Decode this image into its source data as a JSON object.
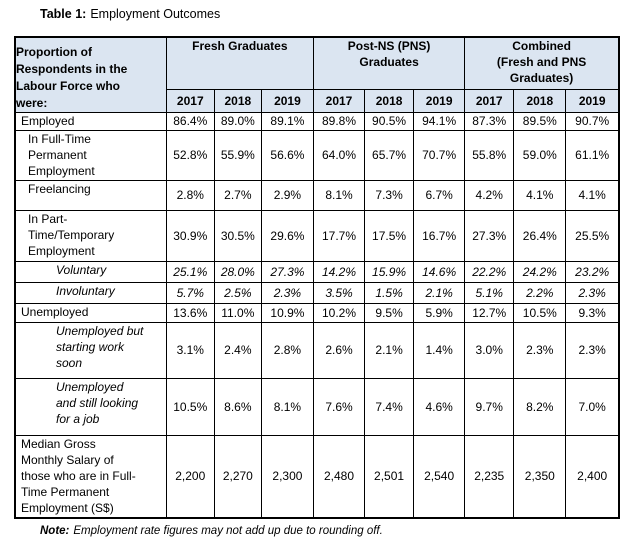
{
  "title": {
    "prefix": "Table 1:",
    "text": "Employment Outcomes"
  },
  "colors": {
    "header_bg": "#dbe5f1",
    "border": "#000000",
    "text": "#000000"
  },
  "table": {
    "corner_header": "Proportion of\nRespondents in the\nLabour Force who\nwere:",
    "groups": [
      {
        "label": "Fresh Graduates",
        "years": [
          "2017",
          "2018",
          "2019"
        ]
      },
      {
        "label": "Post-NS (PNS)\nGraduates",
        "years": [
          "2017",
          "2018",
          "2019"
        ]
      },
      {
        "label": "Combined\n(Fresh and PNS\nGraduates)",
        "years": [
          "2017",
          "2018",
          "2019"
        ]
      }
    ],
    "rows": [
      {
        "label": "Employed",
        "indent": 1,
        "italic": false,
        "italic_values": false,
        "values": [
          "86.4%",
          "89.0%",
          "89.1%",
          "89.8%",
          "90.5%",
          "94.1%",
          "87.3%",
          "89.5%",
          "90.7%"
        ]
      },
      {
        "label": "In Full-Time\nPermanent\nEmployment",
        "indent": 2,
        "italic": false,
        "italic_values": false,
        "values": [
          "52.8%",
          "55.9%",
          "56.6%",
          "64.0%",
          "65.7%",
          "70.7%",
          "55.8%",
          "59.0%",
          "61.1%"
        ]
      },
      {
        "label": "Freelancing",
        "indent": 2,
        "italic": false,
        "italic_values": false,
        "values": [
          "2.8%",
          "2.7%",
          "2.9%",
          "8.1%",
          "7.3%",
          "6.7%",
          "4.2%",
          "4.1%",
          "4.1%"
        ]
      },
      {
        "label": "In Part-\nTime/Temporary\nEmployment",
        "indent": 2,
        "italic": false,
        "italic_values": false,
        "values": [
          "30.9%",
          "30.5%",
          "29.6%",
          "17.7%",
          "17.5%",
          "16.7%",
          "27.3%",
          "26.4%",
          "25.5%"
        ]
      },
      {
        "label": "Voluntary",
        "indent": 3,
        "italic": true,
        "italic_values": true,
        "values": [
          "25.1%",
          "28.0%",
          "27.3%",
          "14.2%",
          "15.9%",
          "14.6%",
          "22.2%",
          "24.2%",
          "23.2%"
        ]
      },
      {
        "label": "Involuntary",
        "indent": 3,
        "italic": true,
        "italic_values": true,
        "values": [
          "5.7%",
          "2.5%",
          "2.3%",
          "3.5%",
          "1.5%",
          "2.1%",
          "5.1%",
          "2.2%",
          "2.3%"
        ]
      },
      {
        "label": "Unemployed",
        "indent": 1,
        "italic": false,
        "italic_values": false,
        "values": [
          "13.6%",
          "11.0%",
          "10.9%",
          "10.2%",
          "9.5%",
          "5.9%",
          "12.7%",
          "10.5%",
          "9.3%"
        ]
      },
      {
        "label": "Unemployed but\nstarting work\nsoon",
        "indent": 3,
        "italic": true,
        "italic_values": false,
        "values": [
          "3.1%",
          "2.4%",
          "2.8%",
          "2.6%",
          "2.1%",
          "1.4%",
          "3.0%",
          "2.3%",
          "2.3%"
        ]
      },
      {
        "label": "Unemployed\nand still looking\nfor a job",
        "indent": 3,
        "italic": true,
        "italic_values": false,
        "values": [
          "10.5%",
          "8.6%",
          "8.1%",
          "7.6%",
          "7.4%",
          "4.6%",
          "9.7%",
          "8.2%",
          "7.0%"
        ]
      },
      {
        "label": "Median Gross\nMonthly Salary of\nthose who are in Full-\nTime Permanent\nEmployment (S$)",
        "indent": 1,
        "italic": false,
        "italic_values": false,
        "values": [
          "2,200",
          "2,270",
          "2,300",
          "2,480",
          "2,501",
          "2,540",
          "2,235",
          "2,350",
          "2,400"
        ]
      }
    ]
  },
  "note": {
    "prefix": "Note:",
    "text": "Employment rate figures may not add up due to rounding off."
  }
}
